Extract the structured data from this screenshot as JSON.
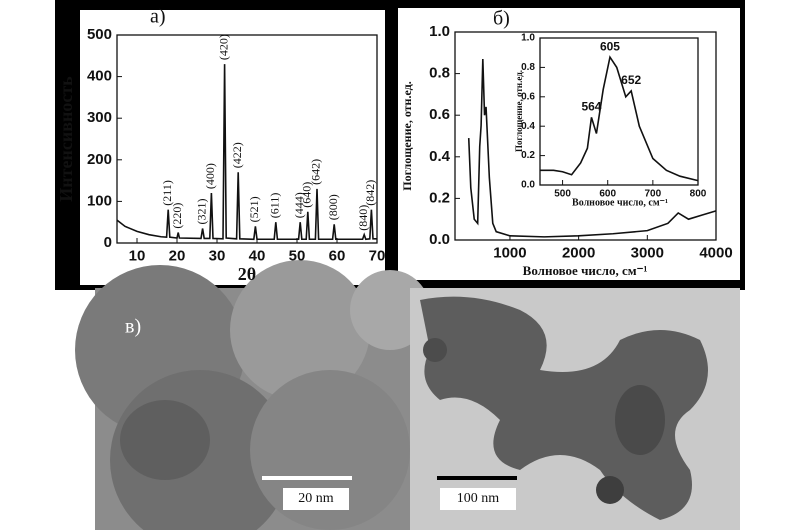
{
  "chart_data": [
    {
      "type": "line",
      "label": "а)",
      "ylabel": "Интенсивность",
      "xlabel": "2θ",
      "color": "#111111",
      "xlim": [
        5,
        70
      ],
      "ylim": [
        0,
        500
      ],
      "xticks": [
        10,
        20,
        30,
        40,
        50,
        60,
        70
      ],
      "yticks": [
        0,
        100,
        200,
        300,
        400,
        500
      ],
      "x": [
        5,
        7,
        10,
        13,
        16,
        17.4,
        17.8,
        18.2,
        20,
        20.3,
        20.6,
        26,
        26.4,
        26.8,
        28.2,
        28.6,
        29,
        31.5,
        31.9,
        32.3,
        34.9,
        35.3,
        35.7,
        39.2,
        39.6,
        40,
        44.3,
        44.7,
        45.1,
        50.4,
        50.8,
        51.2,
        52.3,
        52.7,
        53.1,
        54.6,
        55,
        55.4,
        58.9,
        59.3,
        59.7,
        66.4,
        66.8,
        67.2,
        68.2,
        68.6,
        69,
        70
      ],
      "values": [
        55,
        40,
        28,
        20,
        15,
        14,
        80,
        14,
        12,
        25,
        12,
        11,
        35,
        11,
        11,
        120,
        11,
        10,
        430,
        12,
        10,
        170,
        10,
        9,
        40,
        9,
        9,
        50,
        9,
        9,
        50,
        9,
        9,
        75,
        9,
        9,
        130,
        9,
        9,
        45,
        9,
        9,
        20,
        9,
        10,
        80,
        10,
        10
      ],
      "peaks": [
        {
          "label": "(211)",
          "x": 17.8,
          "y": 80
        },
        {
          "label": "(220)",
          "x": 20.3,
          "y": 25
        },
        {
          "label": "(321)",
          "x": 26.4,
          "y": 35
        },
        {
          "label": "(400)",
          "x": 28.6,
          "y": 120
        },
        {
          "label": "(420)",
          "x": 31.9,
          "y": 430
        },
        {
          "label": "(422)",
          "x": 35.3,
          "y": 170
        },
        {
          "label": "(521)",
          "x": 39.6,
          "y": 40
        },
        {
          "label": "(611)",
          "x": 44.7,
          "y": 50
        },
        {
          "label": "(444)",
          "x": 50.8,
          "y": 50
        },
        {
          "label": "(640)",
          "x": 52.7,
          "y": 75
        },
        {
          "label": "(642)",
          "x": 55,
          "y": 130
        },
        {
          "label": "(800)",
          "x": 59.3,
          "y": 45
        },
        {
          "label": "(840)",
          "x": 66.8,
          "y": 20
        },
        {
          "label": "(842)",
          "x": 68.6,
          "y": 80
        }
      ]
    },
    {
      "type": "line",
      "label": "б)",
      "ylabel": "Поглощение, отн.ед.",
      "xlabel": "Волновое число, см⁻¹",
      "color": "#111111",
      "xlim": [
        200,
        4000
      ],
      "ylim": [
        0,
        1
      ],
      "xticks": [
        1000,
        2000,
        3000,
        4000
      ],
      "yticks": [
        {
          "value": 0,
          "label": "0.0"
        },
        0.2,
        0.4,
        0.6,
        0.8,
        {
          "value": 1,
          "label": "1.0"
        }
      ],
      "x": [
        400,
        430,
        480,
        530,
        560,
        580,
        605,
        630,
        652,
        700,
        750,
        800,
        1000,
        1500,
        2000,
        2500,
        3000,
        3300,
        3450,
        3600,
        3800,
        4000
      ],
      "values": [
        0.49,
        0.25,
        0.1,
        0.08,
        0.45,
        0.55,
        0.87,
        0.6,
        0.64,
        0.3,
        0.08,
        0.04,
        0.02,
        0.015,
        0.02,
        0.03,
        0.045,
        0.08,
        0.13,
        0.1,
        0.12,
        0.14
      ]
    },
    {
      "type": "line",
      "ylabel": "Поглощение, отн.ед.",
      "xlabel": "Волновое число, см⁻¹",
      "color": "#111111",
      "xlim": [
        450,
        800
      ],
      "ylim": [
        0,
        1
      ],
      "xticks": [
        500,
        600,
        700,
        800
      ],
      "yticks": [
        {
          "value": 0,
          "label": "0.0"
        },
        0.2,
        0.4,
        0.6,
        0.8,
        {
          "value": 1,
          "label": "1.0"
        }
      ],
      "x": [
        450,
        480,
        500,
        520,
        540,
        555,
        564,
        575,
        590,
        605,
        620,
        640,
        652,
        670,
        700,
        730,
        760,
        800
      ],
      "values": [
        0.1,
        0.1,
        0.09,
        0.07,
        0.15,
        0.25,
        0.46,
        0.35,
        0.65,
        0.87,
        0.8,
        0.6,
        0.64,
        0.4,
        0.18,
        0.1,
        0.06,
        0.03
      ],
      "peaks": [
        {
          "x": 564,
          "y": 0.46
        },
        {
          "x": 605,
          "y": 0.87
        },
        {
          "x": 652,
          "y": 0.64
        }
      ]
    }
  ],
  "images": {
    "label": "в)",
    "scale_bars": [
      "20 nm",
      "100 nm"
    ]
  }
}
